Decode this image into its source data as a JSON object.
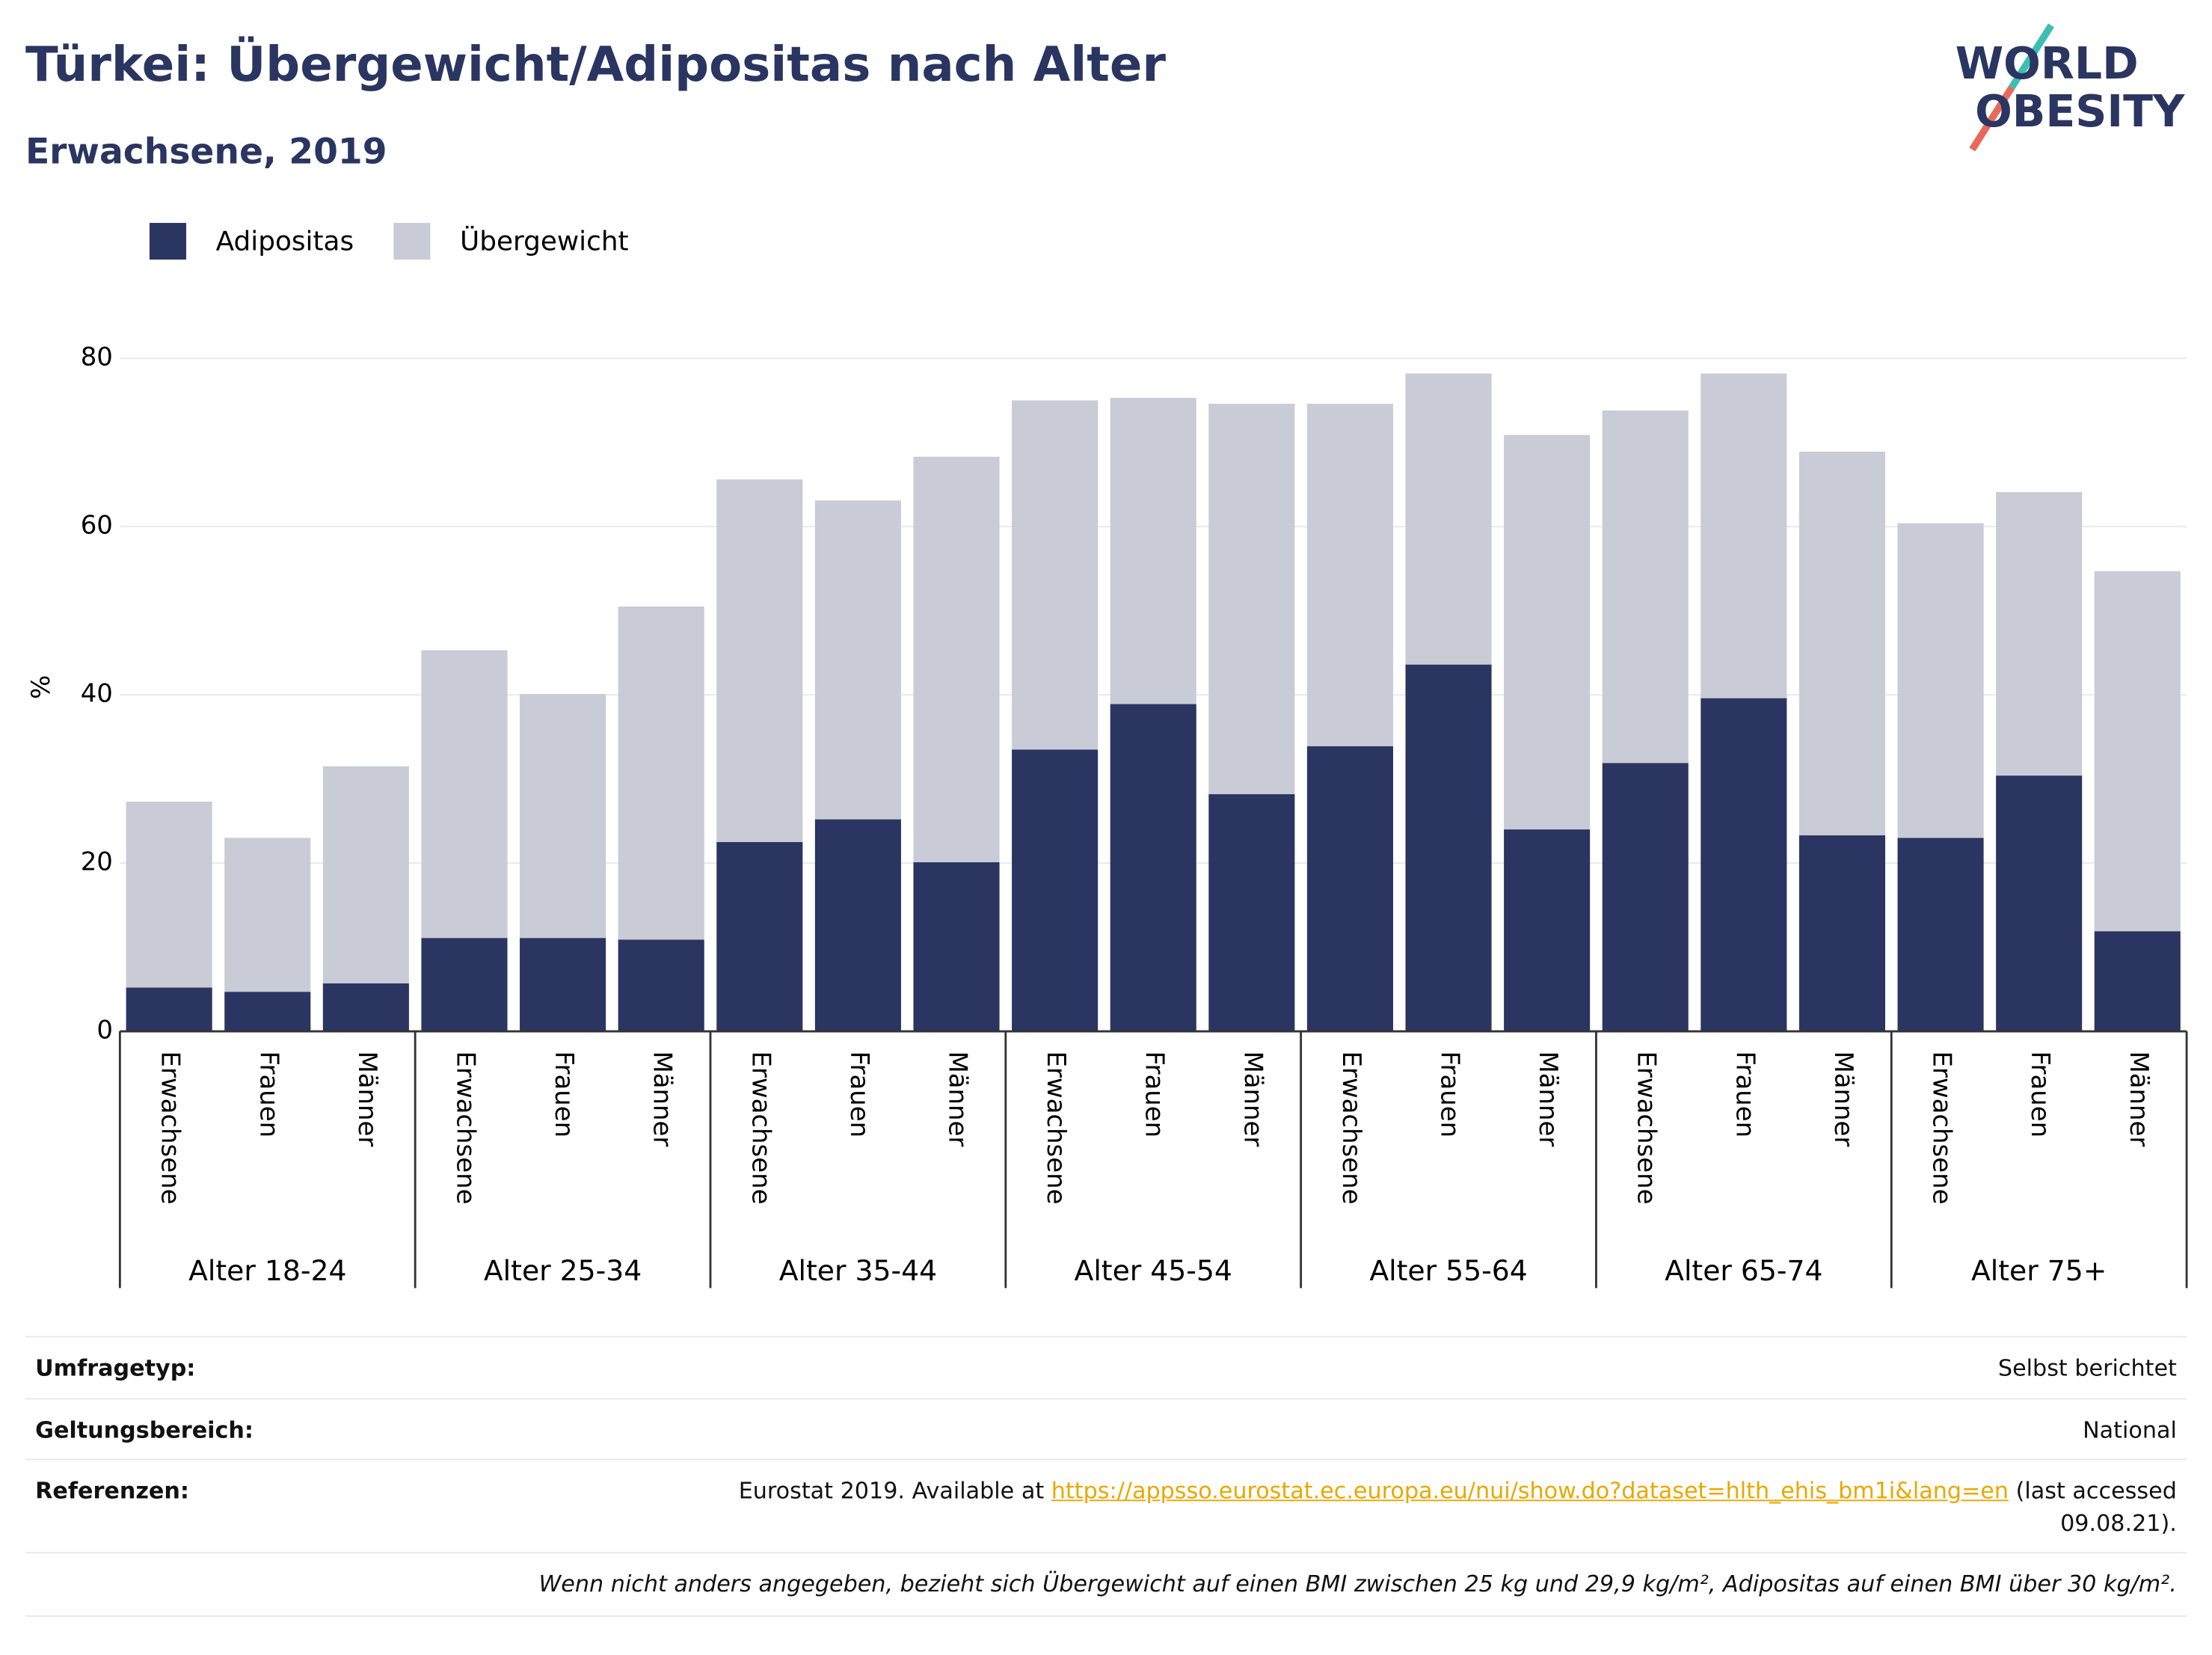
{
  "chart_data": {
    "type": "stacked_bar",
    "title": "Türkei: Übergewicht/Adipositas nach Alter",
    "subtitle": "Erwachsene, 2019",
    "y_label": "%",
    "categories": [
      "Erwachsene",
      "Frauen",
      "Männer",
      "Erwachsene",
      "Frauen",
      "Männer",
      "Erwachsene",
      "Frauen",
      "Männer",
      "Erwachsene",
      "Frauen",
      "Männer",
      "Erwachsene",
      "Frauen",
      "Männer",
      "Erwachsene",
      "Frauen",
      "Männer",
      "Erwachsene",
      "Frauen",
      "Männer"
    ],
    "groups": [
      "Alter 18-24",
      "Alter 25-34",
      "Alter 35-44",
      "Alter 45-54",
      "Alter 55-64",
      "Alter 65-74",
      "Alter 75+"
    ],
    "series": [
      {
        "name": "Adipositas",
        "color": "#2a3561",
        "values": [
          5.2,
          4.7,
          5.7,
          11.1,
          11.1,
          10.9,
          22.5,
          25.2,
          20.1,
          33.5,
          38.9,
          28.2,
          33.9,
          43.6,
          24.0,
          31.9,
          39.6,
          23.3,
          23.0,
          30.4,
          11.9
        ]
      },
      {
        "name": "Übergewicht",
        "color": "#c9cbd6",
        "values": [
          22.1,
          18.3,
          25.8,
          34.2,
          29.0,
          39.6,
          43.1,
          37.9,
          48.2,
          41.5,
          36.4,
          46.4,
          40.7,
          34.6,
          46.9,
          41.9,
          38.6,
          45.6,
          37.4,
          33.7,
          42.8
        ]
      }
    ],
    "ylim": [
      0,
      80
    ],
    "yticks": [
      0,
      20,
      40,
      60,
      80
    ],
    "grid": true,
    "legend": "top-left"
  },
  "logo": {
    "line1": "WORLD",
    "line2": "OBESITY"
  },
  "info": {
    "rows": [
      {
        "label": "Umfragetyp:",
        "value": "Selbst berichtet"
      },
      {
        "label": "Geltungsbereich:",
        "value": "National"
      }
    ],
    "reference": {
      "label": "Referenzen:",
      "before": "Eurostat 2019. Available at",
      "link": "https://appsso.eurostat.ec.europa.eu/nui/show.do?dataset=hlth_ehis_bm1i&lang=en",
      "after": "(last accessed 09.08.21)."
    },
    "note": "Wenn nicht anders angegeben, bezieht sich Übergewicht auf einen BMI zwischen 25 kg und 29,9 kg/m², Adipositas auf einen BMI über 30 kg/m²."
  }
}
